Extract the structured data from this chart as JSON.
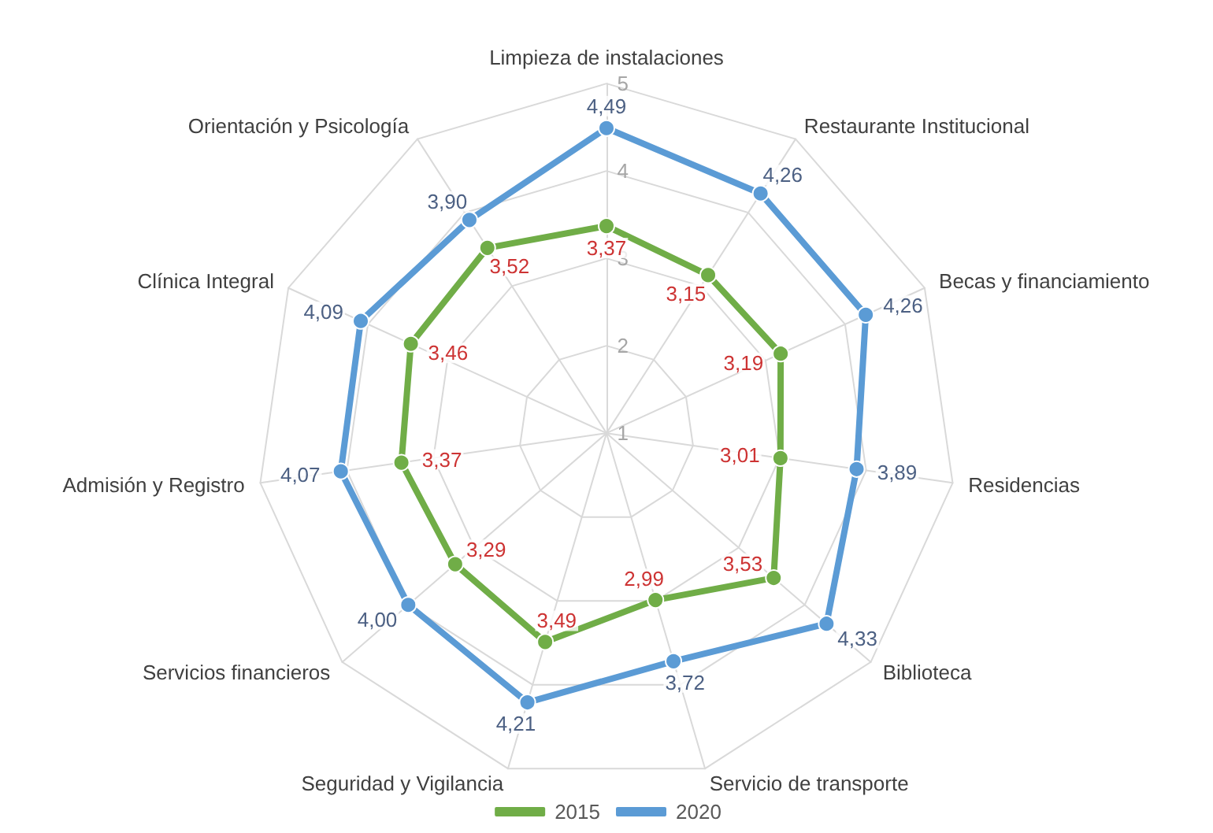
{
  "chart_data": {
    "type": "radar",
    "categories": [
      "Limpieza de instalaciones",
      "Restaurante Institucional",
      "Becas y financiamiento",
      "Residencias",
      "Biblioteca",
      "Servicio de transporte",
      "Seguridad y Vigilancia",
      "Servicios financieros",
      "Admisión y Registro",
      "Clínica Integral",
      "Orientación y Psicología"
    ],
    "series": [
      {
        "name": "2015",
        "color": "#70ad47",
        "values": [
          3.37,
          3.15,
          3.19,
          3.01,
          3.53,
          2.99,
          3.49,
          3.29,
          3.37,
          3.46,
          3.52
        ],
        "value_labels": [
          "3,37",
          "3,15",
          "3,19",
          "3,01",
          "3,53",
          "2,99",
          "3,49",
          "3,29",
          "3,37",
          "3,46",
          "3,52"
        ]
      },
      {
        "name": "2020",
        "color": "#5b9bd5",
        "values": [
          4.49,
          4.26,
          4.26,
          3.89,
          4.33,
          3.72,
          4.21,
          4.0,
          4.07,
          4.09,
          3.9
        ],
        "value_labels": [
          "4,49",
          "4,26",
          "4,26",
          "3,89",
          "4,33",
          "3,72",
          "4,21",
          "4,00",
          "4,07",
          "4,09",
          "3,90"
        ]
      }
    ],
    "ylim": [
      1,
      5
    ],
    "yticks": [
      1,
      2,
      3,
      4,
      5
    ],
    "grid": true,
    "legend": "bottom",
    "marker": "circle"
  }
}
